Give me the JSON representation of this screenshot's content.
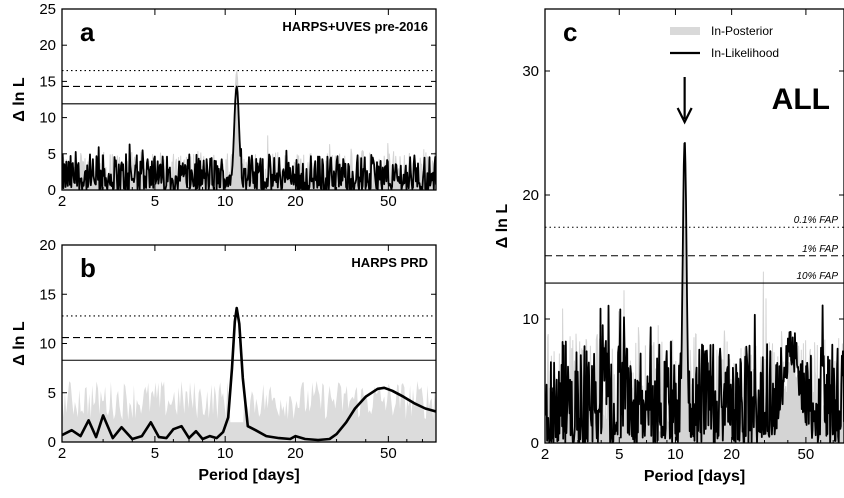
{
  "chart_data": [
    {
      "panel": "a",
      "type": "line",
      "title": "HARPS+UVES pre-2016",
      "ylabel": "Δ ln L",
      "xlabel": "",
      "xscale": "log",
      "xlim": [
        2,
        80
      ],
      "ylim": [
        0,
        25
      ],
      "xticks": [
        "2",
        "5",
        "10",
        "20",
        "50"
      ],
      "yticks": [
        "0",
        "5",
        "10",
        "15",
        "20",
        "25"
      ],
      "thresholds": [
        {
          "label": "0.1% FAP",
          "value": 16.5,
          "style": "dotted"
        },
        {
          "label": "1% FAP",
          "value": 14.3,
          "style": "dashed"
        },
        {
          "label": "10% FAP",
          "value": 11.9,
          "style": "solid"
        }
      ],
      "peak": {
        "x": 11.2,
        "y": 14.3
      },
      "posterior_peak": {
        "x": 11.2,
        "y": 16.4
      },
      "noise_level": 2.5,
      "series": [
        {
          "name": "In-Posterior"
        },
        {
          "name": "In-Likelihood"
        }
      ]
    },
    {
      "panel": "b",
      "type": "line",
      "title": "HARPS PRD",
      "ylabel": "Δ ln L",
      "xlabel": "Period [days]",
      "xscale": "log",
      "xlim": [
        2,
        80
      ],
      "ylim": [
        0,
        20
      ],
      "xticks": [
        "2",
        "5",
        "10",
        "20",
        "50"
      ],
      "yticks": [
        "0",
        "5",
        "10",
        "15",
        "20"
      ],
      "thresholds": [
        {
          "label": "0.1% FAP",
          "value": 12.8,
          "style": "dotted"
        },
        {
          "label": "1% FAP",
          "value": 10.6,
          "style": "dashed"
        },
        {
          "label": "10% FAP",
          "value": 8.3,
          "style": "solid"
        }
      ],
      "likelihood_curve": {
        "x": [
          2.0,
          2.2,
          2.4,
          2.6,
          2.8,
          3.0,
          3.3,
          3.6,
          4.0,
          4.4,
          4.8,
          5.2,
          5.6,
          6.0,
          6.5,
          7.0,
          7.5,
          8.0,
          8.6,
          9.2,
          9.8,
          10.3,
          10.7,
          11.0,
          11.2,
          11.5,
          11.9,
          12.5,
          13.5,
          15,
          17,
          19,
          20,
          22,
          25,
          28,
          30,
          33,
          36,
          40,
          45,
          48,
          52,
          58,
          65,
          72,
          80
        ],
        "y": [
          0.7,
          1.2,
          0.6,
          2.2,
          0.5,
          2.7,
          0.4,
          1.5,
          0.3,
          0.6,
          2.0,
          0.5,
          0.4,
          1.3,
          1.6,
          0.4,
          1.1,
          0.3,
          0.6,
          0.4,
          1.0,
          2.5,
          7.5,
          12.2,
          13.6,
          12.0,
          6.5,
          1.6,
          1.2,
          0.6,
          0.4,
          0.3,
          0.6,
          0.3,
          0.2,
          0.3,
          0.8,
          2.0,
          3.4,
          4.6,
          5.4,
          5.5,
          5.2,
          4.6,
          3.9,
          3.4,
          3.1
        ]
      },
      "posterior_band_level": 4.5,
      "series": [
        {
          "name": "In-Posterior"
        },
        {
          "name": "In-Likelihood"
        }
      ]
    },
    {
      "panel": "c",
      "type": "line",
      "title": "ALL",
      "ylabel": "Δ ln L",
      "xlabel": "Period [days]",
      "xscale": "log",
      "xlim": [
        2,
        80
      ],
      "ylim": [
        0,
        35
      ],
      "xticks": [
        "2",
        "5",
        "10",
        "20",
        "50"
      ],
      "yticks": [
        "0",
        "10",
        "20",
        "30"
      ],
      "thresholds": [
        {
          "label": "0.1% FAP",
          "value": 17.4,
          "style": "dotted"
        },
        {
          "label": "1% FAP",
          "value": 15.1,
          "style": "dashed"
        },
        {
          "label": "10% FAP",
          "value": 12.9,
          "style": "solid"
        }
      ],
      "peak": {
        "x": 11.2,
        "y": 24.4
      },
      "posterior_peak": {
        "x": 11.2,
        "y": 22.6
      },
      "secondary_peak": {
        "x": 42,
        "y": 10.4
      },
      "arrow_at": 11.2,
      "legend": [
        {
          "label": "In-Posterior",
          "color": "#d9d9d9"
        },
        {
          "label": "In-Likelihood",
          "color": "#000000"
        }
      ],
      "series": [
        {
          "name": "In-Posterior"
        },
        {
          "name": "In-Likelihood"
        }
      ]
    }
  ]
}
